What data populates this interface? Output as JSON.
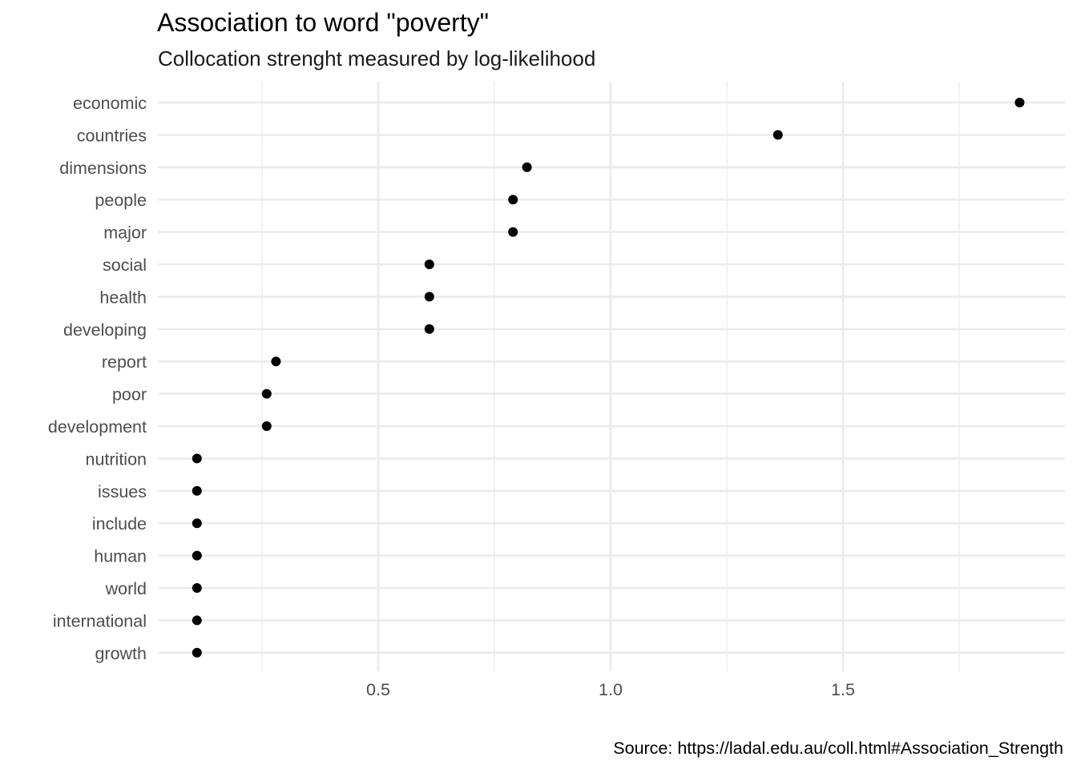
{
  "chart_data": {
    "type": "scatter",
    "title": "Association to word \"poverty\"",
    "subtitle": "Collocation strenght measured by log-likelihood",
    "caption": "Source: https://ladal.edu.au/coll.html#Association_Strength",
    "xlabel": "",
    "ylabel": "",
    "xlim": [
      0.05,
      1.9
    ],
    "x_ticks": [
      0.5,
      1.0,
      1.5
    ],
    "x_tick_labels": [
      "0.5",
      "1.0",
      "1.5"
    ],
    "x_minor_ticks": [
      0.25,
      0.75,
      1.25,
      1.75
    ],
    "grid": true,
    "categories": [
      "economic",
      "countries",
      "dimensions",
      "people",
      "major",
      "social",
      "health",
      "developing",
      "report",
      "poor",
      "development",
      "nutrition",
      "issues",
      "include",
      "human",
      "world",
      "international",
      "growth"
    ],
    "values": [
      1.88,
      1.36,
      0.82,
      0.79,
      0.79,
      0.61,
      0.61,
      0.61,
      0.28,
      0.26,
      0.26,
      0.11,
      0.11,
      0.11,
      0.11,
      0.11,
      0.11,
      0.11
    ],
    "point_color": "#000000",
    "grid_color": "#ebebeb"
  }
}
